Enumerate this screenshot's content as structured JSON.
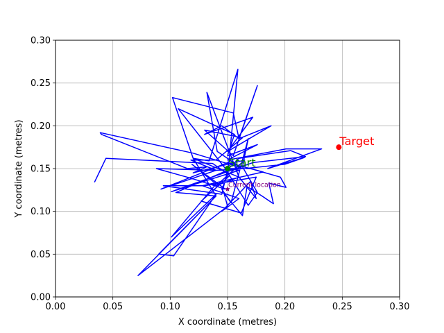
{
  "chart_data": {
    "type": "line",
    "title": "",
    "xlabel": "X coordinate (metres)",
    "ylabel": "Y coordinate (metres)",
    "xlim": [
      0.0,
      0.3
    ],
    "ylim": [
      0.0,
      0.3
    ],
    "xticks": [
      "0.00",
      "0.05",
      "0.10",
      "0.15",
      "0.20",
      "0.25",
      "0.30"
    ],
    "yticks": [
      "0.00",
      "0.05",
      "0.10",
      "0.15",
      "0.20",
      "0.25",
      "0.30"
    ],
    "grid": true,
    "series": [
      {
        "name": "",
        "color": "#0000ff",
        "points": [
          [
            0.034,
            0.134
          ],
          [
            0.044,
            0.162
          ],
          [
            0.137,
            0.156
          ],
          [
            0.152,
            0.142
          ],
          [
            0.127,
            0.112
          ],
          [
            0.162,
            0.098
          ],
          [
            0.175,
            0.14
          ],
          [
            0.13,
            0.13
          ],
          [
            0.094,
            0.13
          ],
          [
            0.145,
            0.12
          ],
          [
            0.15,
            0.148
          ],
          [
            0.105,
            0.122
          ],
          [
            0.14,
            0.118
          ],
          [
            0.12,
            0.162
          ],
          [
            0.102,
            0.233
          ],
          [
            0.155,
            0.215
          ],
          [
            0.16,
            0.185
          ],
          [
            0.145,
            0.2
          ],
          [
            0.13,
            0.19
          ],
          [
            0.172,
            0.21
          ],
          [
            0.15,
            0.17
          ],
          [
            0.188,
            0.2
          ],
          [
            0.16,
            0.185
          ],
          [
            0.176,
            0.247
          ],
          [
            0.155,
            0.165
          ],
          [
            0.13,
            0.195
          ],
          [
            0.163,
            0.186
          ],
          [
            0.14,
            0.16
          ],
          [
            0.118,
            0.16
          ],
          [
            0.14,
            0.148
          ],
          [
            0.092,
            0.126
          ],
          [
            0.15,
            0.157
          ],
          [
            0.181,
            0.146
          ],
          [
            0.128,
            0.13
          ],
          [
            0.16,
            0.115
          ],
          [
            0.145,
            0.1
          ],
          [
            0.17,
            0.135
          ],
          [
            0.175,
            0.115
          ],
          [
            0.16,
            0.14
          ],
          [
            0.14,
            0.13
          ],
          [
            0.165,
            0.16
          ],
          [
            0.12,
            0.145
          ],
          [
            0.132,
            0.152
          ],
          [
            0.115,
            0.15
          ],
          [
            0.04,
            0.19
          ],
          [
            0.039,
            0.192
          ],
          [
            0.12,
            0.168
          ],
          [
            0.162,
            0.151
          ],
          [
            0.141,
            0.17
          ],
          [
            0.132,
            0.239
          ],
          [
            0.16,
            0.14
          ],
          [
            0.12,
            0.162
          ],
          [
            0.134,
            0.159
          ],
          [
            0.159,
            0.266
          ],
          [
            0.15,
            0.142
          ],
          [
            0.145,
            0.126
          ],
          [
            0.153,
            0.11
          ],
          [
            0.168,
            0.185
          ],
          [
            0.163,
            0.152
          ],
          [
            0.176,
            0.122
          ],
          [
            0.168,
            0.107
          ],
          [
            0.147,
            0.152
          ],
          [
            0.107,
            0.22
          ],
          [
            0.156,
            0.19
          ],
          [
            0.15,
            0.165
          ],
          [
            0.176,
            0.178
          ],
          [
            0.15,
            0.16
          ],
          [
            0.201,
            0.173
          ],
          [
            0.232,
            0.173
          ],
          [
            0.185,
            0.15
          ],
          [
            0.217,
            0.163
          ],
          [
            0.2,
            0.155
          ],
          [
            0.165,
            0.15
          ],
          [
            0.14,
            0.148
          ],
          [
            0.088,
            0.15
          ],
          [
            0.12,
            0.138
          ],
          [
            0.148,
            0.126
          ],
          [
            0.119,
            0.155
          ],
          [
            0.14,
            0.132
          ],
          [
            0.101,
            0.07
          ],
          [
            0.14,
            0.12
          ],
          [
            0.103,
            0.048
          ],
          [
            0.09,
            0.05
          ],
          [
            0.14,
            0.118
          ],
          [
            0.072,
            0.025
          ],
          [
            0.15,
            0.106
          ],
          [
            0.147,
            0.121
          ],
          [
            0.163,
            0.095
          ],
          [
            0.167,
            0.129
          ],
          [
            0.18,
            0.118
          ],
          [
            0.19,
            0.109
          ],
          [
            0.186,
            0.133
          ],
          [
            0.201,
            0.128
          ],
          [
            0.196,
            0.14
          ],
          [
            0.17,
            0.15
          ],
          [
            0.151,
            0.15
          ],
          [
            0.16,
            0.162
          ],
          [
            0.205,
            0.171
          ],
          [
            0.218,
            0.164
          ],
          [
            0.172,
            0.157
          ],
          [
            0.101,
            0.123
          ],
          [
            0.16,
            0.148
          ],
          [
            0.15,
            0.15
          ]
        ]
      }
    ],
    "markers": [
      {
        "label": "Start",
        "x": 0.15,
        "y": 0.15,
        "color": "#008000",
        "marker": "circle",
        "font_size": 12
      },
      {
        "label": "Target",
        "x": 0.247,
        "y": 0.175,
        "color": "#ff0000",
        "marker": "circle",
        "font_size": 12
      },
      {
        "label": "Current location",
        "x": 0.15,
        "y": 0.126,
        "color": "#800080",
        "marker": "star",
        "font_size": 7
      }
    ]
  }
}
